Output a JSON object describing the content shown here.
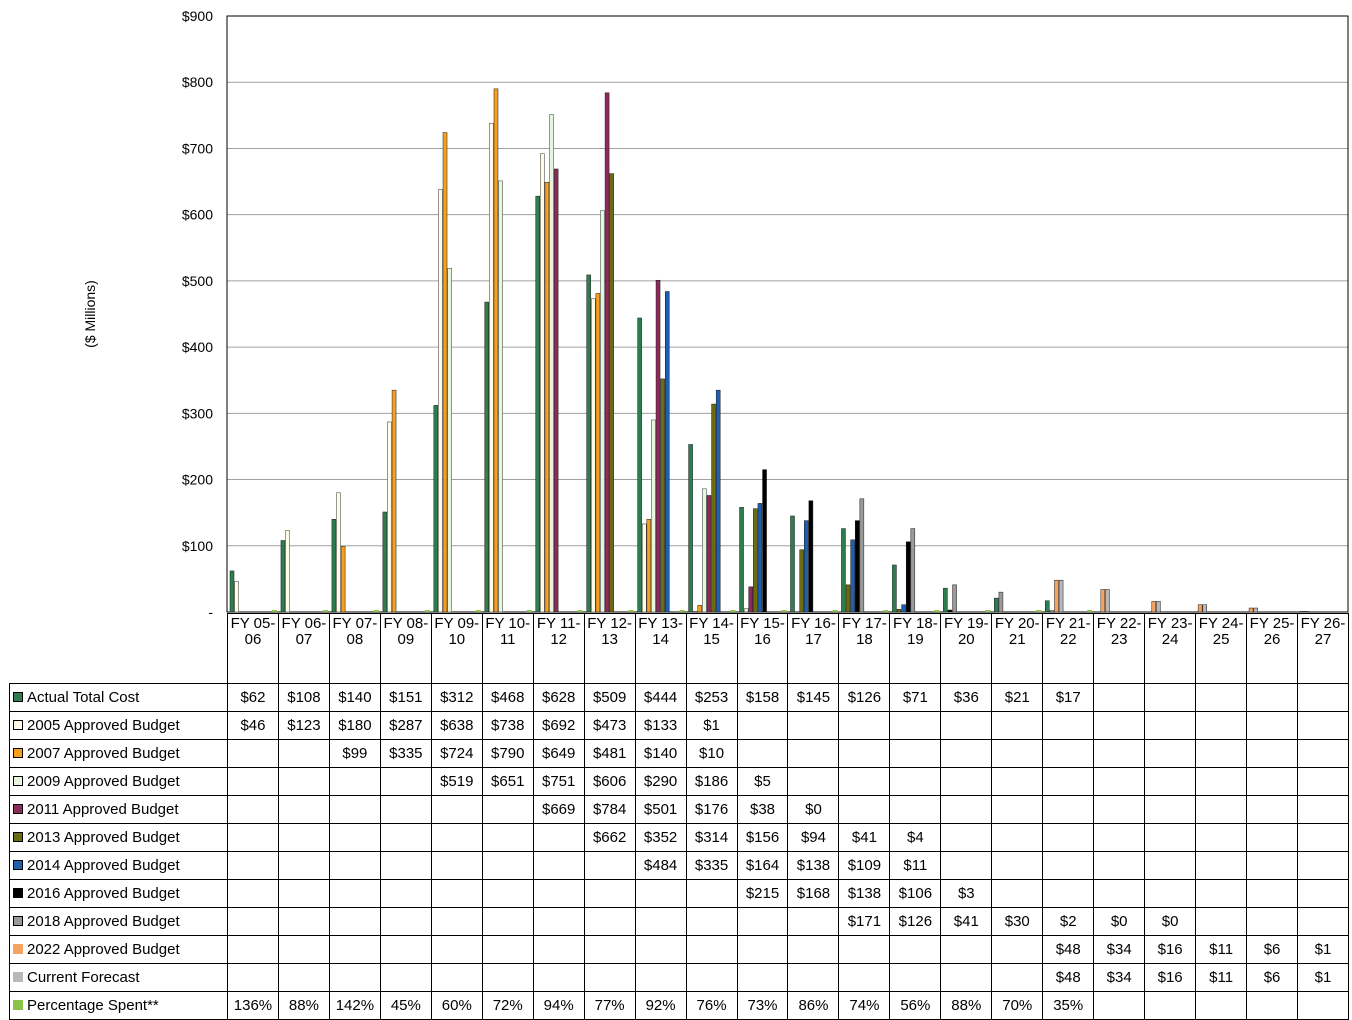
{
  "chart_data": {
    "type": "bar",
    "ylabel": "($ Millions)",
    "ylim": [
      0,
      900
    ],
    "yticks": [
      "-",
      "$100",
      "$200",
      "$300",
      "$400",
      "$500",
      "$600",
      "$700",
      "$800",
      "$900"
    ],
    "grid": true,
    "categories": [
      "FY 05- 06",
      "FY 06- 07",
      "FY 07- 08",
      "FY 08- 09",
      "FY 09- 10",
      "FY 10- 11",
      "FY 11- 12",
      "FY 12- 13",
      "FY 13- 14",
      "FY 14- 15",
      "FY 15- 16",
      "FY 16- 17",
      "FY 17- 18",
      "FY 18- 19",
      "FY 19- 20",
      "FY 20- 21",
      "FY 21- 22",
      "FY 22- 23",
      "FY 23- 24",
      "FY 24- 25",
      "FY 25- 26",
      "FY 26- 27"
    ],
    "series": [
      {
        "name": "Actual Total Cost",
        "color": "#2e7d4f",
        "values": [
          62,
          108,
          140,
          151,
          312,
          468,
          628,
          509,
          444,
          253,
          158,
          145,
          126,
          71,
          36,
          21,
          17,
          null,
          null,
          null,
          null,
          null
        ],
        "labels": [
          "$62",
          "$108",
          "$140",
          "$151",
          "$312",
          "$468",
          "$628",
          "$509",
          "$444",
          "$253",
          "$158",
          "$145",
          "$126",
          "$71",
          "$36",
          "$21",
          "$17",
          "",
          "",
          "",
          "",
          ""
        ]
      },
      {
        "name": "2005 Approved Budget",
        "color": "#fffbe6",
        "values": [
          46,
          123,
          180,
          287,
          638,
          738,
          692,
          473,
          133,
          1,
          null,
          null,
          null,
          null,
          null,
          null,
          null,
          null,
          null,
          null,
          null,
          null
        ],
        "labels": [
          "$46",
          "$123",
          "$180",
          "$287",
          "$638",
          "$738",
          "$692",
          "$473",
          "$133",
          "$1",
          "",
          "",
          "",
          "",
          "",
          "",
          "",
          "",
          "",
          "",
          "",
          ""
        ]
      },
      {
        "name": "2007 Approved Budget",
        "color": "#f5a020",
        "values": [
          null,
          null,
          99,
          335,
          724,
          790,
          649,
          481,
          140,
          10,
          null,
          null,
          null,
          null,
          null,
          null,
          null,
          null,
          null,
          null,
          null,
          null
        ],
        "labels": [
          "",
          "",
          "$99",
          "$335",
          "$724",
          "$790",
          "$649",
          "$481",
          "$140",
          "$10",
          "",
          "",
          "",
          "",
          "",
          "",
          "",
          "",
          "",
          "",
          "",
          ""
        ]
      },
      {
        "name": "2009 Approved Budget",
        "color": "#e6f5e0",
        "values": [
          null,
          null,
          null,
          null,
          519,
          651,
          751,
          606,
          290,
          186,
          5,
          null,
          null,
          null,
          null,
          null,
          null,
          null,
          null,
          null,
          null,
          null
        ],
        "labels": [
          "",
          "",
          "",
          "",
          "$519",
          "$651",
          "$751",
          "$606",
          "$290",
          "$186",
          "$5",
          "",
          "",
          "",
          "",
          "",
          "",
          "",
          "",
          "",
          "",
          ""
        ]
      },
      {
        "name": "2011 Approved Budget",
        "color": "#8e2a5a",
        "values": [
          null,
          null,
          null,
          null,
          null,
          null,
          669,
          784,
          501,
          176,
          38,
          0,
          null,
          null,
          null,
          null,
          null,
          null,
          null,
          null,
          null,
          null
        ],
        "labels": [
          "",
          "",
          "",
          "",
          "",
          "",
          "$669",
          "$784",
          "$501",
          "$176",
          "$38",
          "$0",
          "",
          "",
          "",
          "",
          "",
          "",
          "",
          "",
          "",
          ""
        ]
      },
      {
        "name": "2013 Approved Budget",
        "color": "#6b6b12",
        "values": [
          null,
          null,
          null,
          null,
          null,
          null,
          null,
          662,
          352,
          314,
          156,
          94,
          41,
          4,
          null,
          null,
          null,
          null,
          null,
          null,
          null,
          null
        ],
        "labels": [
          "",
          "",
          "",
          "",
          "",
          "",
          "",
          "$662",
          "$352",
          "$314",
          "$156",
          "$94",
          "$41",
          "$4",
          "",
          "",
          "",
          "",
          "",
          "",
          "",
          ""
        ]
      },
      {
        "name": "2014 Approved Budget",
        "color": "#1f5fb0",
        "values": [
          null,
          null,
          null,
          null,
          null,
          null,
          null,
          null,
          484,
          335,
          164,
          138,
          109,
          11,
          null,
          null,
          null,
          null,
          null,
          null,
          null,
          null
        ],
        "labels": [
          "",
          "",
          "",
          "",
          "",
          "",
          "",
          "",
          "$484",
          "$335",
          "$164",
          "$138",
          "$109",
          "$11",
          "",
          "",
          "",
          "",
          "",
          "",
          "",
          ""
        ]
      },
      {
        "name": "2016 Approved Budget",
        "color": "#000000",
        "values": [
          null,
          null,
          null,
          null,
          null,
          null,
          null,
          null,
          null,
          null,
          215,
          168,
          138,
          106,
          3,
          null,
          null,
          null,
          null,
          null,
          null,
          null
        ],
        "labels": [
          "",
          "",
          "",
          "",
          "",
          "",
          "",
          "",
          "",
          "",
          "$215",
          "$168",
          "$138",
          "$106",
          "$3",
          "",
          "",
          "",
          "",
          "",
          "",
          ""
        ]
      },
      {
        "name": "2018 Approved Budget",
        "color": "#9a9a9a",
        "values": [
          null,
          null,
          null,
          null,
          null,
          null,
          null,
          null,
          null,
          null,
          null,
          null,
          171,
          126,
          41,
          30,
          2,
          0,
          0,
          null,
          null,
          null
        ],
        "labels": [
          "",
          "",
          "",
          "",
          "",
          "",
          "",
          "",
          "",
          "",
          "",
          "",
          "$171",
          "$126",
          "$41",
          "$30",
          "$2",
          "$0",
          "$0",
          "",
          "",
          ""
        ]
      },
      {
        "name": "2022 Approved Budget",
        "color": "#f4a460",
        "values": [
          null,
          null,
          null,
          null,
          null,
          null,
          null,
          null,
          null,
          null,
          null,
          null,
          null,
          null,
          null,
          null,
          48,
          34,
          16,
          11,
          6,
          1
        ],
        "labels": [
          "",
          "",
          "",
          "",
          "",
          "",
          "",
          "",
          "",
          "",
          "",
          "",
          "",
          "",
          "",
          "",
          "$48",
          "$34",
          "$16",
          "$11",
          "$6",
          "$1"
        ]
      },
      {
        "name": "Current Forecast",
        "color": "#b8b8b8",
        "values": [
          null,
          null,
          null,
          null,
          null,
          null,
          null,
          null,
          null,
          null,
          null,
          null,
          null,
          null,
          null,
          null,
          48,
          34,
          16,
          11,
          6,
          1
        ],
        "labels": [
          "",
          "",
          "",
          "",
          "",
          "",
          "",
          "",
          "",
          "",
          "",
          "",
          "",
          "",
          "",
          "",
          "$48",
          "$34",
          "$16",
          "$11",
          "$6",
          "$1"
        ]
      },
      {
        "name": "Percentage Spent**",
        "color": "#8bc34a",
        "values": [
          136,
          88,
          142,
          45,
          60,
          72,
          94,
          77,
          92,
          76,
          73,
          86,
          74,
          56,
          88,
          70,
          35,
          null,
          null,
          null,
          null,
          null
        ],
        "labels": [
          "136%",
          "88%",
          "142%",
          "45%",
          "60%",
          "72%",
          "94%",
          "77%",
          "92%",
          "76%",
          "73%",
          "86%",
          "74%",
          "56%",
          "88%",
          "70%",
          "35%",
          "",
          "",
          "",
          "",
          ""
        ]
      }
    ]
  }
}
